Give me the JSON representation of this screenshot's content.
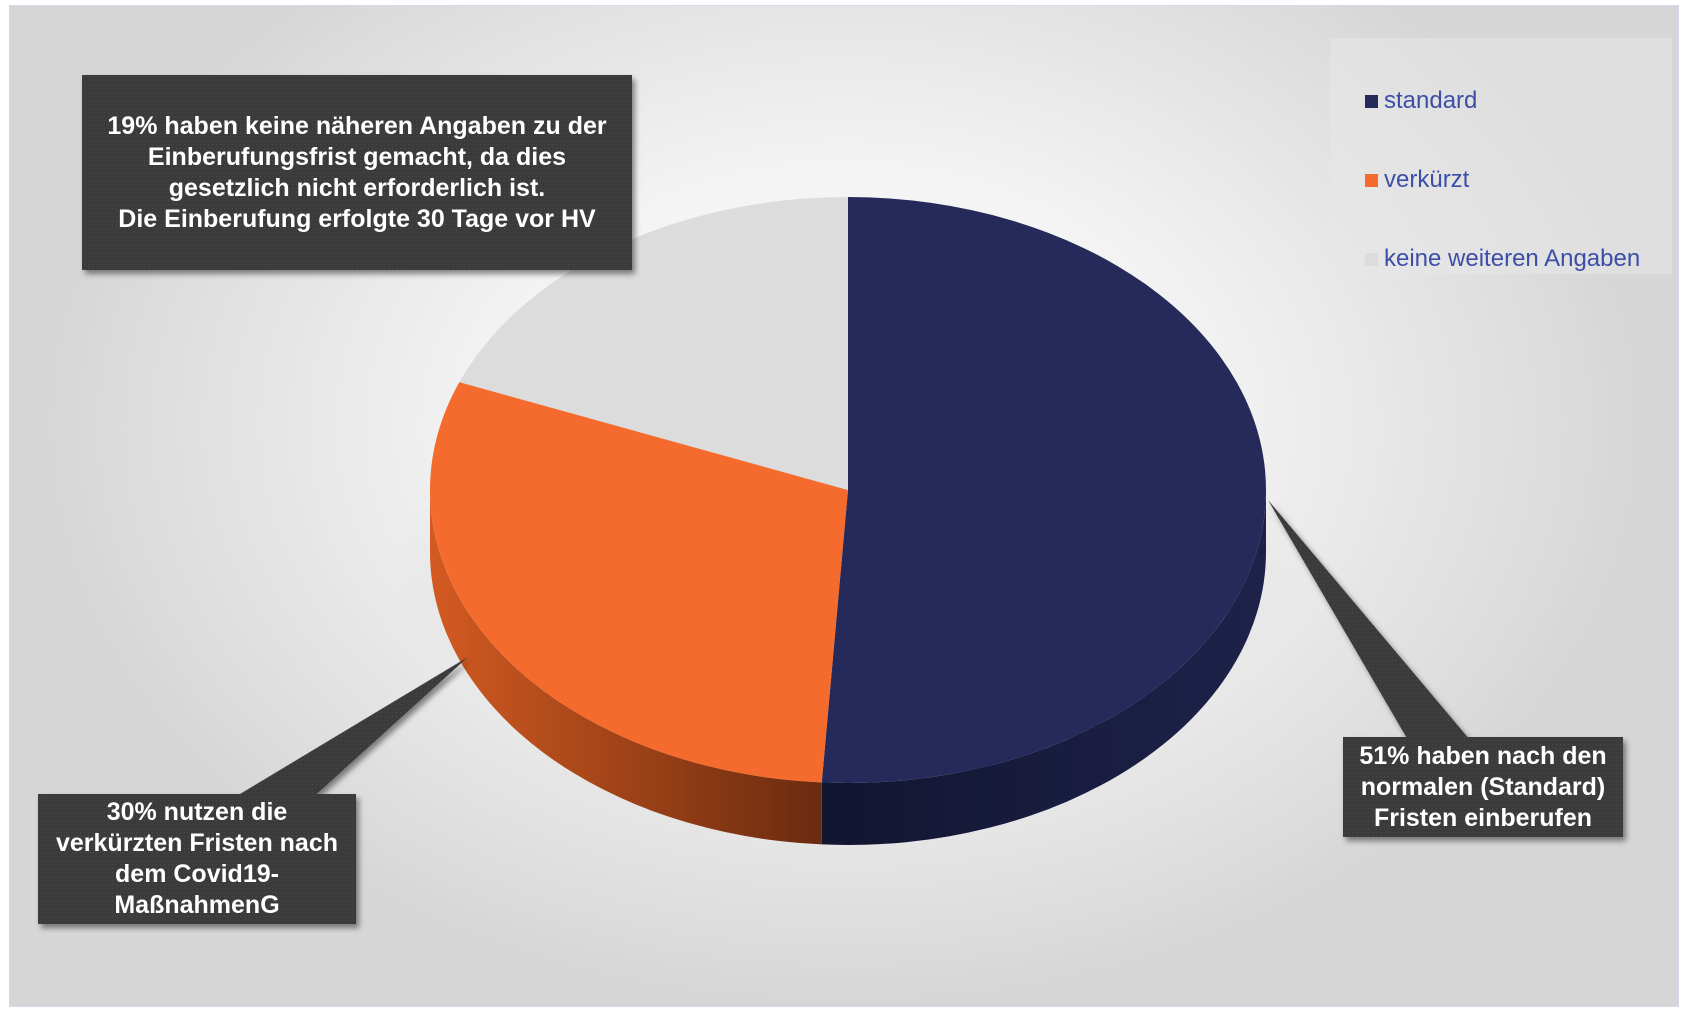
{
  "chart_data": {
    "type": "pie",
    "categories": [
      "standard",
      "verkürzt",
      "keine weiteren Angaben"
    ],
    "values": [
      51,
      30,
      19
    ],
    "unit": "%",
    "legend_position": "top-right",
    "three_d": true,
    "annotations": [
      {
        "target": "keine weiteren Angaben",
        "lines": [
          "19% haben keine näheren Angaben zu der",
          "Einberufungsfrist gemacht, da dies",
          "gesetzlich nicht erforderlich ist.",
          "Die Einberufung erfolgte 30 Tage vor HV"
        ]
      },
      {
        "target": "standard",
        "lines": [
          "51% haben nach den",
          "normalen (Standard)",
          "Fristen einberufen"
        ]
      },
      {
        "target": "verkürzt",
        "lines": [
          "30% nutzen die",
          "verkürzten Fristen nach",
          "dem Covid19-",
          "MaßnahmenG"
        ]
      }
    ]
  },
  "colors": {
    "standard": "#252a5a",
    "standard_side": "#12152f",
    "verkuerzt": "#f46b2d",
    "verkuerzt_side": "#a6441b",
    "keine": "#dcdcdc",
    "callout_bg": "#3b3b3b",
    "legend_text": "#3d4ea8"
  }
}
